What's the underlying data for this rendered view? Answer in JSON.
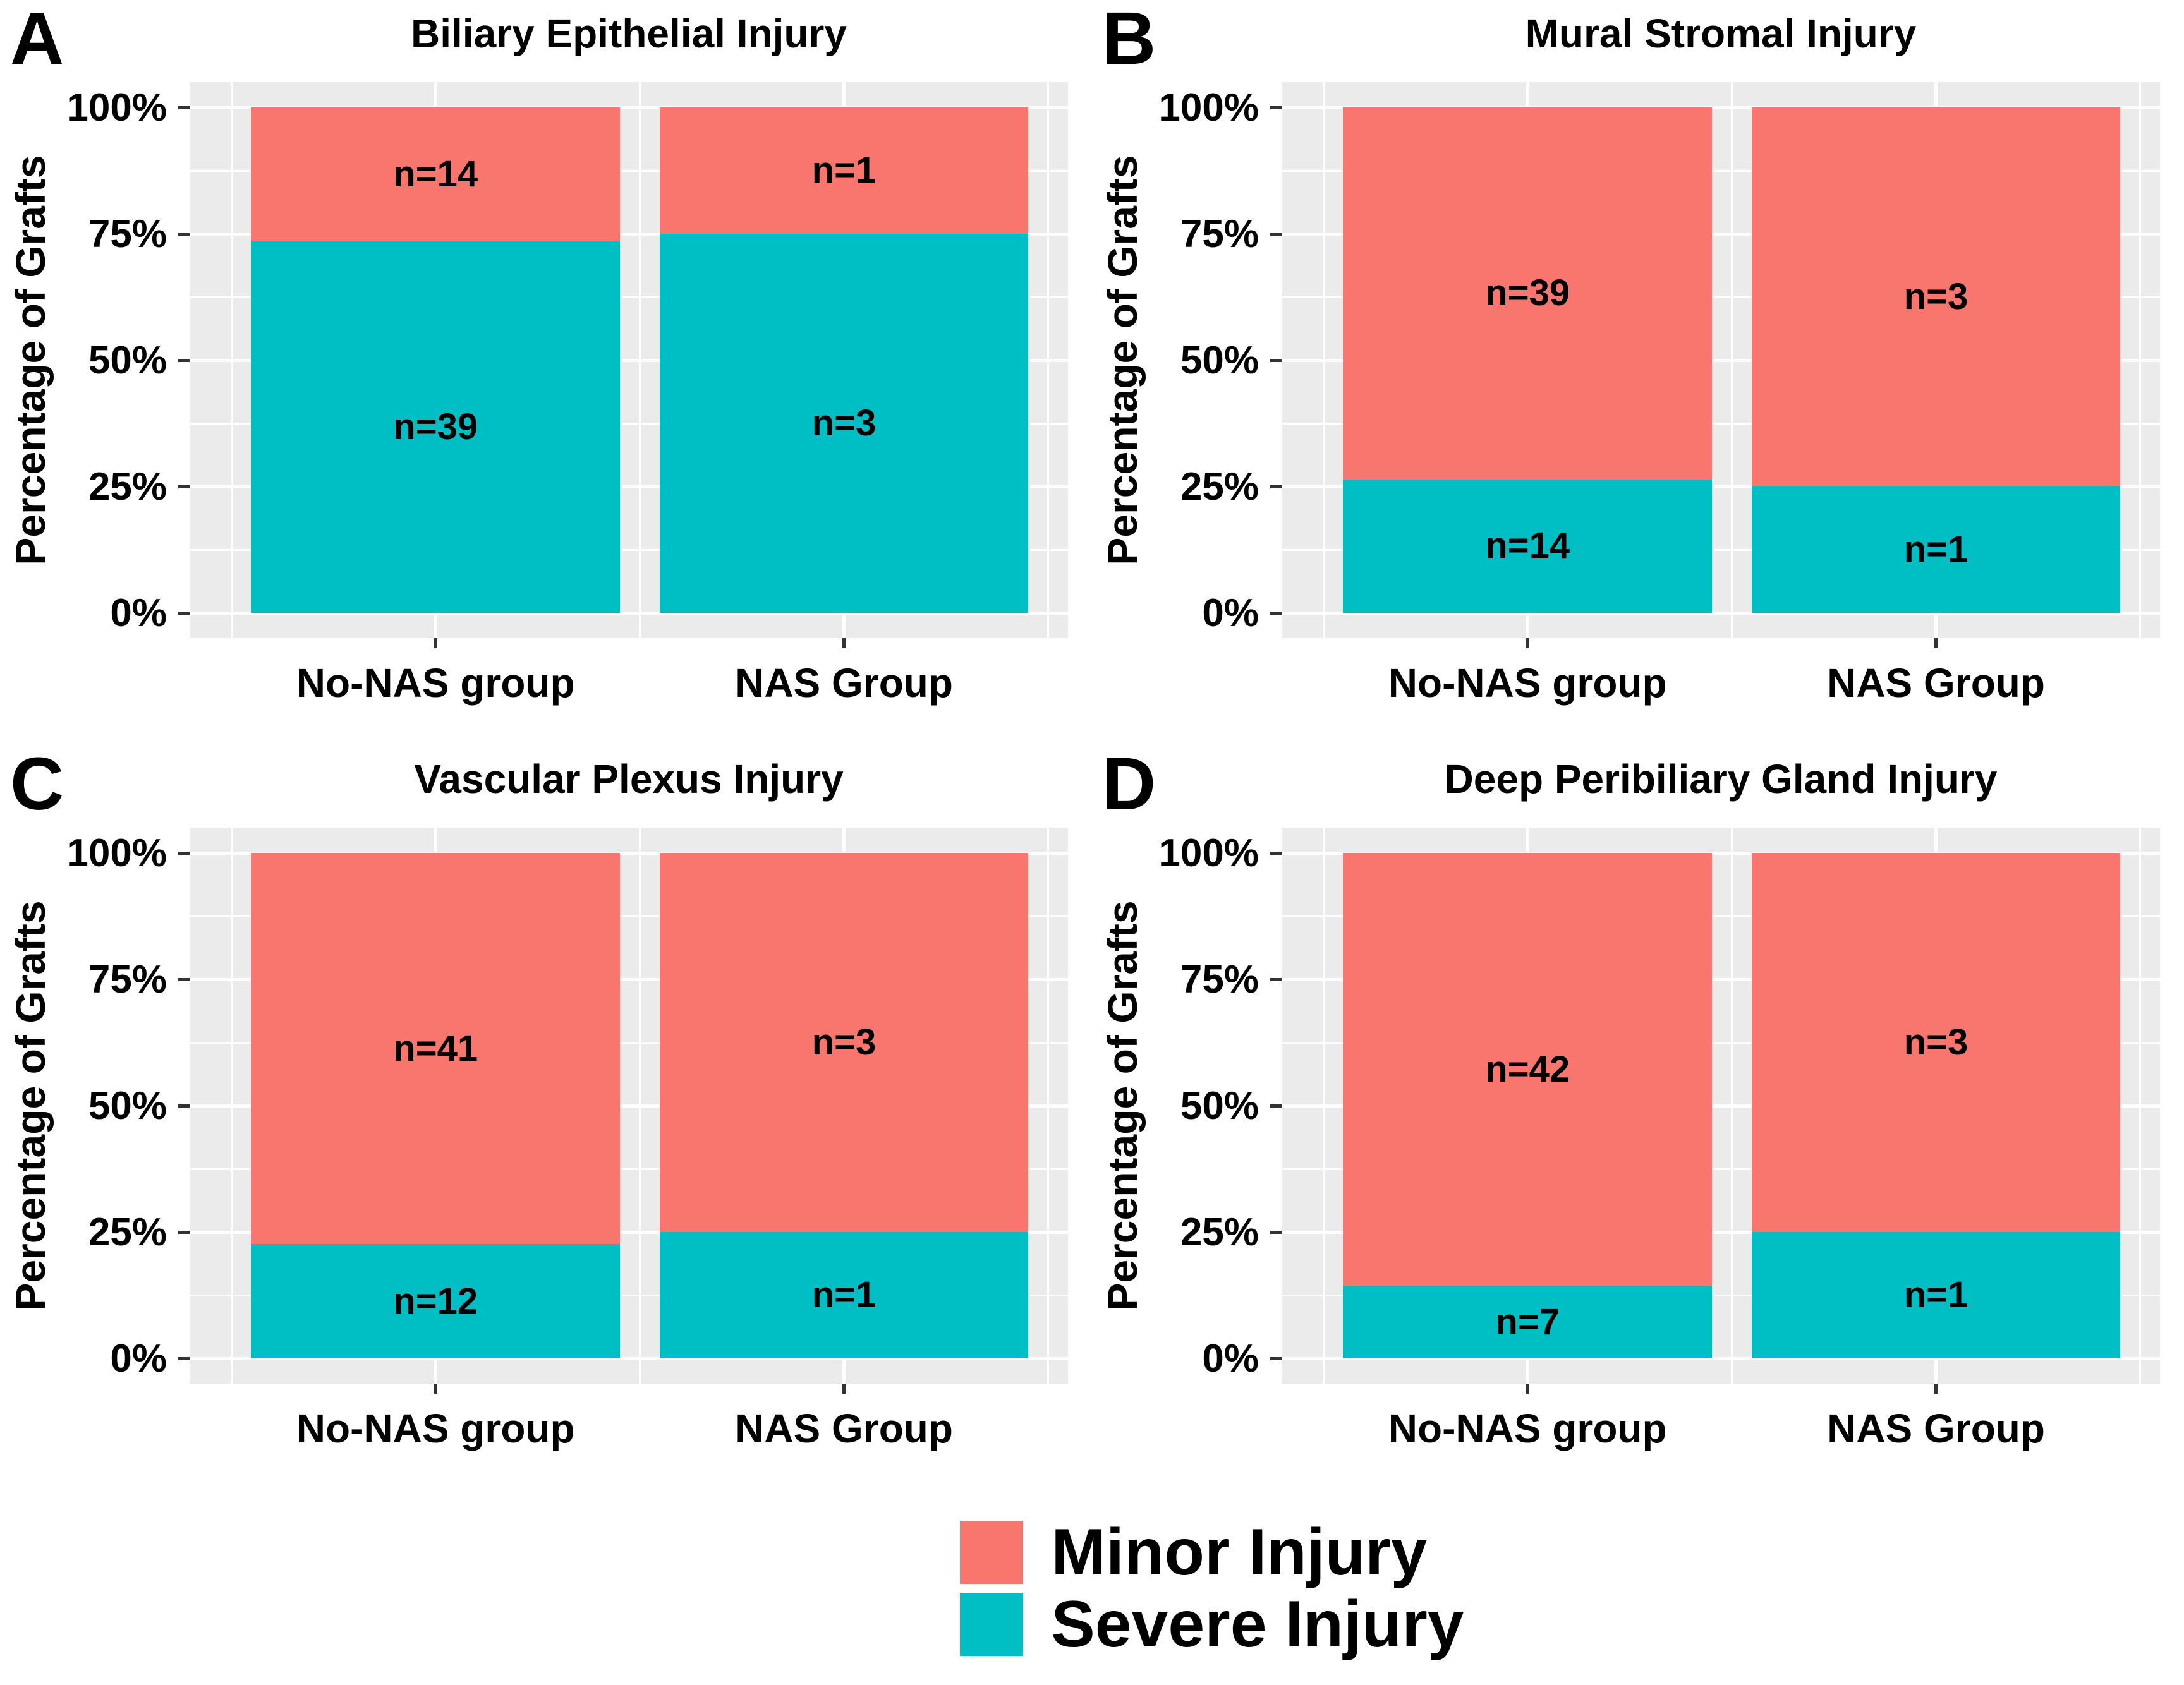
{
  "figure": {
    "background": "#FFFFFF",
    "panel_background": "#EBEBEB",
    "gridline_color": "#FFFFFF",
    "tick_color": "#333333",
    "text_color": "#000000"
  },
  "legend": {
    "position": "bottom-center",
    "entries": [
      {
        "label": "Minor Injury",
        "color": "#F8766D"
      },
      {
        "label": "Severe Injury",
        "color": "#00BFC4"
      }
    ]
  },
  "chart_data": [
    {
      "type": "bar",
      "panel_label": "A",
      "title": "Biliary Epithelial Injury",
      "ylabel": "Percentage of Grafts",
      "ylim": [
        0,
        100
      ],
      "grid": true,
      "stacking": "percent",
      "stack_bottom": "Severe Injury",
      "yticks_percent": [
        0,
        25,
        50,
        75,
        100
      ],
      "ytick_labels": [
        "0%",
        "25%",
        "50%",
        "75%",
        "100%"
      ],
      "categories": [
        "No-NAS group",
        "NAS Group"
      ],
      "series": [
        {
          "name": "Minor Injury",
          "counts": [
            14,
            1
          ],
          "percents": [
            26.4,
            25.0
          ],
          "labels": [
            "n=14",
            "n=1"
          ]
        },
        {
          "name": "Severe Injury",
          "counts": [
            39,
            3
          ],
          "percents": [
            73.6,
            75.0
          ],
          "labels": [
            "n=39",
            "n=3"
          ]
        }
      ]
    },
    {
      "type": "bar",
      "panel_label": "B",
      "title": "Mural Stromal Injury",
      "ylabel": "Percentage of Grafts",
      "ylim": [
        0,
        100
      ],
      "grid": true,
      "stacking": "percent",
      "stack_bottom": "Severe Injury",
      "yticks_percent": [
        0,
        25,
        50,
        75,
        100
      ],
      "ytick_labels": [
        "0%",
        "25%",
        "50%",
        "75%",
        "100%"
      ],
      "categories": [
        "No-NAS group",
        "NAS Group"
      ],
      "series": [
        {
          "name": "Minor Injury",
          "counts": [
            39,
            3
          ],
          "percents": [
            73.6,
            75.0
          ],
          "labels": [
            "n=39",
            "n=3"
          ]
        },
        {
          "name": "Severe Injury",
          "counts": [
            14,
            1
          ],
          "percents": [
            26.4,
            25.0
          ],
          "labels": [
            "n=14",
            "n=1"
          ]
        }
      ]
    },
    {
      "type": "bar",
      "panel_label": "C",
      "title": "Vascular Plexus Injury",
      "ylabel": "Percentage of Grafts",
      "ylim": [
        0,
        100
      ],
      "grid": true,
      "stacking": "percent",
      "stack_bottom": "Severe Injury",
      "yticks_percent": [
        0,
        25,
        50,
        75,
        100
      ],
      "ytick_labels": [
        "0%",
        "25%",
        "50%",
        "75%",
        "100%"
      ],
      "categories": [
        "No-NAS group",
        "NAS Group"
      ],
      "series": [
        {
          "name": "Minor Injury",
          "counts": [
            41,
            3
          ],
          "percents": [
            77.4,
            75.0
          ],
          "labels": [
            "n=41",
            "n=3"
          ]
        },
        {
          "name": "Severe Injury",
          "counts": [
            12,
            1
          ],
          "percents": [
            22.6,
            25.0
          ],
          "labels": [
            "n=12",
            "n=1"
          ]
        }
      ]
    },
    {
      "type": "bar",
      "panel_label": "D",
      "title": "Deep Peribiliary Gland Injury",
      "ylabel": "Percentage of Grafts",
      "ylim": [
        0,
        100
      ],
      "grid": true,
      "stacking": "percent",
      "stack_bottom": "Severe Injury",
      "yticks_percent": [
        0,
        25,
        50,
        75,
        100
      ],
      "ytick_labels": [
        "0%",
        "25%",
        "50%",
        "75%",
        "100%"
      ],
      "categories": [
        "No-NAS group",
        "NAS Group"
      ],
      "series": [
        {
          "name": "Minor Injury",
          "counts": [
            42,
            3
          ],
          "percents": [
            85.7,
            75.0
          ],
          "labels": [
            "n=42",
            "n=3"
          ]
        },
        {
          "name": "Severe Injury",
          "counts": [
            7,
            1
          ],
          "percents": [
            14.3,
            25.0
          ],
          "labels": [
            "n=7",
            "n=1"
          ]
        }
      ]
    }
  ]
}
